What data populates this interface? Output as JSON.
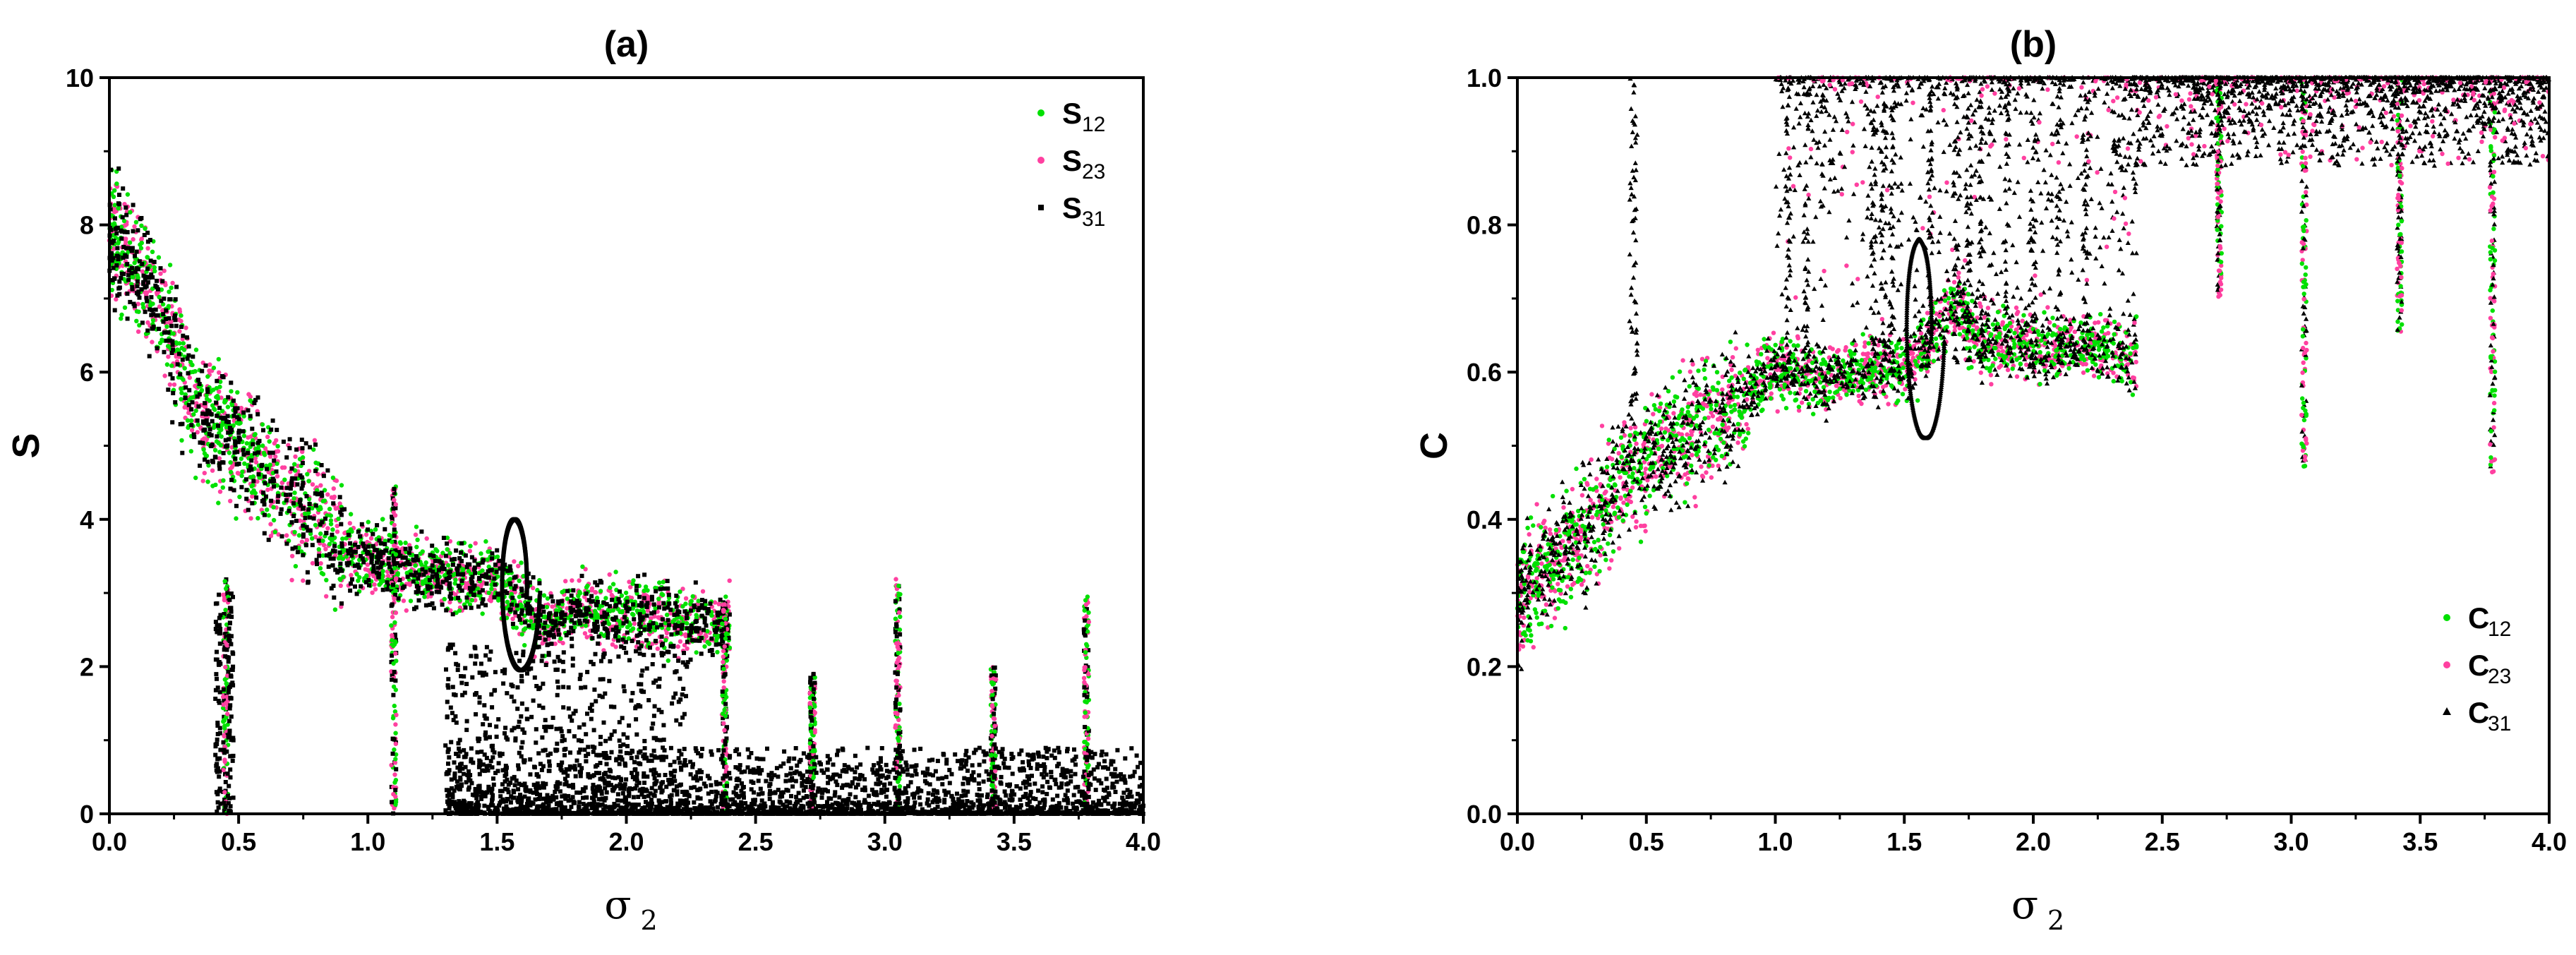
{
  "chart_data": [
    {
      "type": "scatter",
      "panel": "(a)",
      "ylabel": "S",
      "xlabel": "σ",
      "xlabel_sub": "2",
      "xlim": [
        0,
        4
      ],
      "ylim": [
        0,
        10
      ],
      "xticks": [
        "0.0",
        "0.5",
        "1.0",
        "1.5",
        "2.0",
        "2.5",
        "3.0",
        "3.5",
        "4.0"
      ],
      "yticks": [
        "0",
        "2",
        "4",
        "6",
        "8",
        "10"
      ],
      "legend_position": "top-right",
      "series": [
        {
          "name": "S",
          "sub": "12",
          "color": "#00e000",
          "marker": "circle"
        },
        {
          "name": "S",
          "sub": "23",
          "color": "#ff40a0",
          "marker": "circle"
        },
        {
          "name": "S",
          "sub": "31",
          "color": "#000000",
          "marker": "square"
        }
      ],
      "trend": [
        [
          0.0,
          7.9
        ],
        [
          0.1,
          7.5
        ],
        [
          0.2,
          6.8
        ],
        [
          0.3,
          5.8
        ],
        [
          0.4,
          5.3
        ],
        [
          0.5,
          5.0
        ],
        [
          0.6,
          4.6
        ],
        [
          0.7,
          4.3
        ],
        [
          0.8,
          4.1
        ],
        [
          0.9,
          3.6
        ],
        [
          1.0,
          3.5
        ],
        [
          1.1,
          3.4
        ],
        [
          1.2,
          3.3
        ],
        [
          1.3,
          3.2
        ],
        [
          1.4,
          3.2
        ],
        [
          1.5,
          3.2
        ],
        [
          1.7,
          2.5
        ],
        [
          1.8,
          2.8
        ],
        [
          1.9,
          2.7
        ],
        [
          2.0,
          2.7
        ],
        [
          2.1,
          2.7
        ],
        [
          2.2,
          2.6
        ],
        [
          2.38,
          2.6
        ]
      ],
      "spikes": [
        {
          "x": 0.45,
          "top": 3.2
        },
        {
          "x": 1.1,
          "top": 4.5
        },
        {
          "x": 2.38,
          "top": 3.0
        },
        {
          "x": 2.72,
          "top": 1.9
        },
        {
          "x": 3.05,
          "top": 3.2
        },
        {
          "x": 3.42,
          "top": 2.0
        },
        {
          "x": 3.78,
          "top": 2.95
        }
      ],
      "loop": {
        "center_x": 1.58,
        "top": 4.0,
        "bottom": 1.95
      }
    },
    {
      "type": "scatter",
      "panel": "(b)",
      "ylabel": "C",
      "xlabel": "σ",
      "xlabel_sub": "2",
      "xlim": [
        0,
        4
      ],
      "ylim": [
        0,
        1
      ],
      "xticks": [
        "0.0",
        "0.5",
        "1.0",
        "1.5",
        "2.0",
        "2.5",
        "3.0",
        "3.5",
        "4.0"
      ],
      "yticks": [
        "0.0",
        "0.2",
        "0.4",
        "0.6",
        "0.8",
        "1.0"
      ],
      "legend_position": "bottom-right",
      "series": [
        {
          "name": "C",
          "sub": "12",
          "color": "#00e000",
          "marker": "circle"
        },
        {
          "name": "C",
          "sub": "23",
          "color": "#ff40a0",
          "marker": "circle"
        },
        {
          "name": "C",
          "sub": "31",
          "color": "#000000",
          "marker": "triangle"
        }
      ],
      "trend": [
        [
          0.0,
          0.3
        ],
        [
          0.1,
          0.33
        ],
        [
          0.2,
          0.36
        ],
        [
          0.3,
          0.4
        ],
        [
          0.4,
          0.45
        ],
        [
          0.5,
          0.48
        ],
        [
          0.6,
          0.5
        ],
        [
          0.7,
          0.52
        ],
        [
          0.8,
          0.54
        ],
        [
          0.9,
          0.57
        ],
        [
          1.0,
          0.61
        ],
        [
          1.1,
          0.6
        ],
        [
          1.2,
          0.59
        ],
        [
          1.4,
          0.61
        ],
        [
          1.5,
          0.6
        ],
        [
          1.7,
          0.69
        ],
        [
          1.8,
          0.64
        ],
        [
          1.9,
          0.64
        ],
        [
          2.1,
          0.63
        ],
        [
          2.2,
          0.64
        ],
        [
          2.38,
          0.62
        ]
      ],
      "spikes": [
        {
          "x": 2.72,
          "bottom": 0.7
        },
        {
          "x": 3.05,
          "bottom": 0.47
        },
        {
          "x": 3.42,
          "bottom": 0.65
        },
        {
          "x": 3.78,
          "bottom": 0.46
        }
      ],
      "loop": {
        "center_x": 1.57,
        "top": 0.78,
        "bottom": 0.51
      }
    }
  ]
}
